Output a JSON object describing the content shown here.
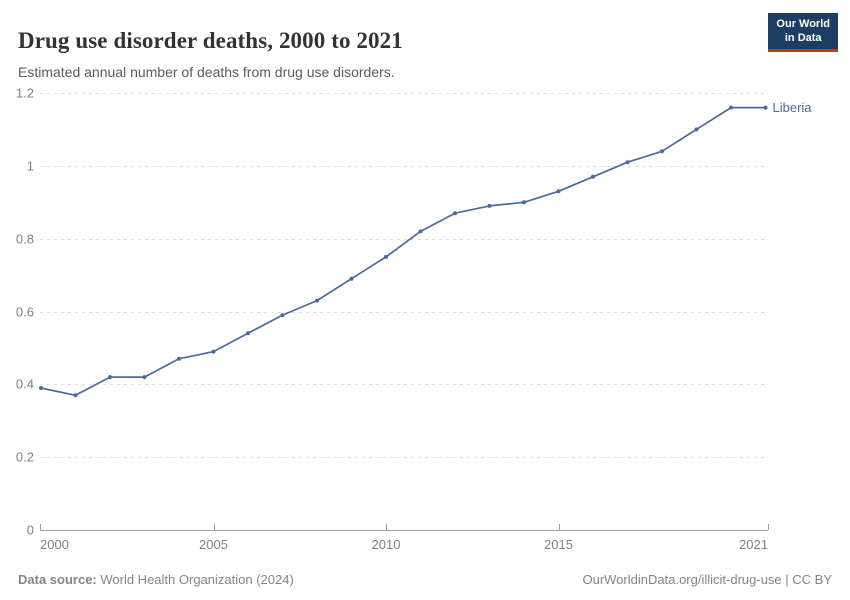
{
  "header": {
    "title": "Drug use disorder deaths, 2000 to 2021",
    "subtitle": "Estimated annual number of deaths from drug use disorders.",
    "logo_line1": "Our World",
    "logo_line2": "in Data"
  },
  "chart_data": {
    "type": "line",
    "title": "Drug use disorder deaths, 2000 to 2021",
    "xlabel": "",
    "ylabel": "",
    "xlim": [
      2000,
      2021
    ],
    "ylim": [
      0,
      1.2
    ],
    "x_ticks": [
      2000,
      2005,
      2010,
      2015,
      2021
    ],
    "y_ticks": [
      0,
      0.2,
      0.4,
      0.6,
      0.8,
      1,
      1.2
    ],
    "grid": "horizontal-dashed",
    "legend_position": "end-of-line",
    "series": [
      {
        "name": "Liberia",
        "color": "#4c6a9c",
        "x": [
          2000,
          2001,
          2002,
          2003,
          2004,
          2005,
          2006,
          2007,
          2008,
          2009,
          2010,
          2011,
          2012,
          2013,
          2014,
          2015,
          2016,
          2017,
          2018,
          2019,
          2020,
          2021
        ],
        "values": [
          0.39,
          0.37,
          0.42,
          0.42,
          0.47,
          0.49,
          0.54,
          0.59,
          0.63,
          0.69,
          0.75,
          0.82,
          0.87,
          0.89,
          0.9,
          0.93,
          0.97,
          1.01,
          1.04,
          1.1,
          1.16,
          1.16
        ]
      }
    ]
  },
  "footer": {
    "source_label": "Data source:",
    "source_value": " World Health Organization (2024)",
    "credit": "OurWorldinData.org/illicit-drug-use | CC BY"
  },
  "colors": {
    "line": "#4c6a9c",
    "grid": "#dcdcdc",
    "axis_line": "#9c9c9c",
    "tick_text": "#818181",
    "title_text": "#333333",
    "subtitle_text": "#5b5b5b",
    "footer_text": "#858585",
    "logo_bg": "#1d3d63",
    "logo_accent": "#c0392b"
  }
}
